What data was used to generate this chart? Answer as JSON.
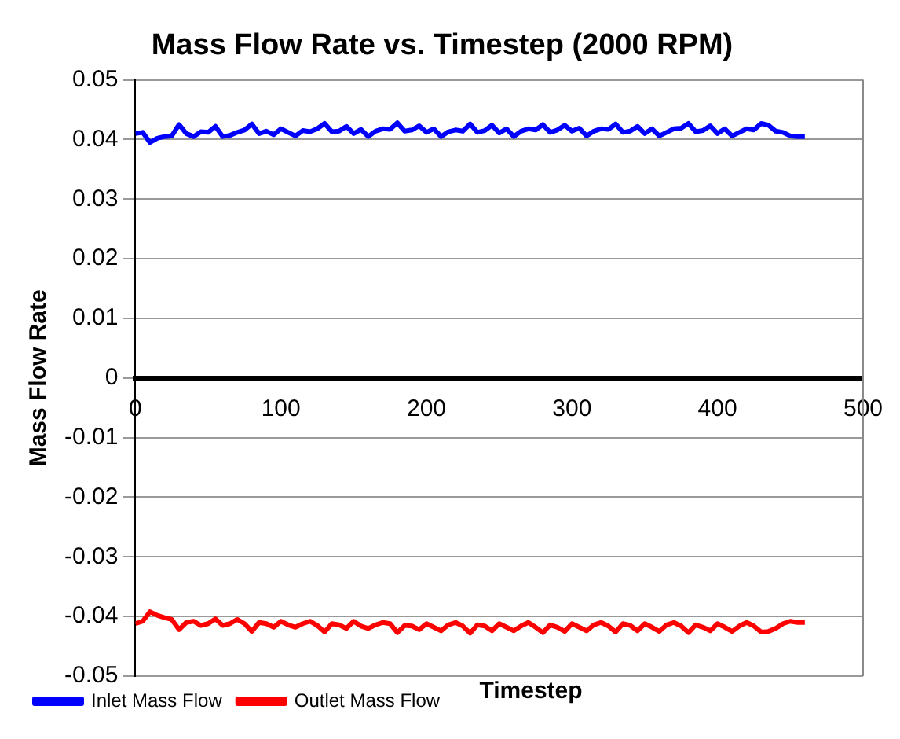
{
  "chart_data": {
    "type": "line",
    "title": "Mass Flow Rate vs. Timestep (2000 RPM)",
    "xlabel": "Timestep",
    "ylabel": "Mass Flow Rate",
    "x": [
      0,
      5,
      10,
      15,
      20,
      25,
      30,
      35,
      40,
      45,
      50,
      55,
      60,
      65,
      70,
      75,
      80,
      85,
      90,
      95,
      100,
      105,
      110,
      115,
      120,
      125,
      130,
      135,
      140,
      145,
      150,
      155,
      160,
      165,
      170,
      175,
      180,
      185,
      190,
      195,
      200,
      205,
      210,
      215,
      220,
      225,
      230,
      235,
      240,
      245,
      250,
      255,
      260,
      265,
      270,
      275,
      280,
      285,
      290,
      295,
      300,
      305,
      310,
      315,
      320,
      325,
      330,
      335,
      340,
      345,
      350,
      355,
      360,
      365,
      370,
      375,
      380,
      385,
      390,
      395,
      400,
      405,
      410,
      415,
      420,
      425,
      430,
      435,
      440,
      445,
      450,
      455,
      460
    ],
    "series": [
      {
        "name": "Inlet Mass Flow",
        "color": "#0000ff",
        "values": [
          0.041,
          0.0412,
          0.0395,
          0.0402,
          0.0405,
          0.0406,
          0.0425,
          0.041,
          0.0405,
          0.0413,
          0.0412,
          0.0422,
          0.0405,
          0.0407,
          0.0412,
          0.0416,
          0.0426,
          0.041,
          0.0414,
          0.0408,
          0.0418,
          0.0412,
          0.0406,
          0.0415,
          0.0413,
          0.0418,
          0.0427,
          0.0413,
          0.0414,
          0.0422,
          0.041,
          0.0417,
          0.0405,
          0.0414,
          0.0418,
          0.0417,
          0.0428,
          0.0414,
          0.0416,
          0.0423,
          0.0412,
          0.0418,
          0.0405,
          0.0413,
          0.0416,
          0.0414,
          0.0426,
          0.0412,
          0.0415,
          0.0424,
          0.0411,
          0.0418,
          0.0405,
          0.0414,
          0.0418,
          0.0416,
          0.0425,
          0.0412,
          0.0416,
          0.0424,
          0.0414,
          0.0419,
          0.0406,
          0.0414,
          0.0418,
          0.0417,
          0.0426,
          0.0412,
          0.0414,
          0.0422,
          0.041,
          0.0418,
          0.0406,
          0.0412,
          0.0418,
          0.0419,
          0.0427,
          0.0413,
          0.0415,
          0.0423,
          0.041,
          0.0418,
          0.0406,
          0.0412,
          0.0418,
          0.0416,
          0.0427,
          0.0424,
          0.0414,
          0.0412,
          0.0406,
          0.0405,
          0.0405
        ]
      },
      {
        "name": "Outlet Mass Flow",
        "color": "#ff0000",
        "values": [
          -0.0412,
          -0.0408,
          -0.0392,
          -0.0398,
          -0.0402,
          -0.0405,
          -0.0422,
          -0.041,
          -0.0408,
          -0.0415,
          -0.0412,
          -0.0404,
          -0.0415,
          -0.0412,
          -0.0405,
          -0.0412,
          -0.0425,
          -0.041,
          -0.0412,
          -0.0418,
          -0.0408,
          -0.0414,
          -0.0418,
          -0.0412,
          -0.0408,
          -0.0415,
          -0.0426,
          -0.0412,
          -0.0414,
          -0.042,
          -0.0408,
          -0.0416,
          -0.042,
          -0.0414,
          -0.041,
          -0.0412,
          -0.0427,
          -0.0415,
          -0.0416,
          -0.0422,
          -0.0412,
          -0.0418,
          -0.0424,
          -0.0414,
          -0.041,
          -0.0416,
          -0.0428,
          -0.0414,
          -0.0416,
          -0.0424,
          -0.0412,
          -0.0418,
          -0.0424,
          -0.0416,
          -0.041,
          -0.0418,
          -0.0427,
          -0.0414,
          -0.0418,
          -0.0425,
          -0.0412,
          -0.0418,
          -0.0424,
          -0.0414,
          -0.041,
          -0.0416,
          -0.0426,
          -0.0412,
          -0.0415,
          -0.0424,
          -0.0412,
          -0.0418,
          -0.0425,
          -0.0414,
          -0.041,
          -0.0416,
          -0.0427,
          -0.0414,
          -0.0418,
          -0.0424,
          -0.0412,
          -0.0418,
          -0.0425,
          -0.0416,
          -0.041,
          -0.0416,
          -0.0426,
          -0.0425,
          -0.042,
          -0.0412,
          -0.0408,
          -0.041,
          -0.041
        ]
      }
    ],
    "xlim": [
      0,
      500
    ],
    "xticks": [
      0,
      100,
      200,
      300,
      400,
      500
    ],
    "ylim": [
      -0.05,
      0.05
    ],
    "yticks": [
      -0.05,
      -0.04,
      -0.03,
      -0.02,
      -0.01,
      0,
      0.01,
      0.02,
      0.03,
      0.04,
      0.05
    ],
    "grid": "y",
    "legend": "bottom left",
    "marker": "none",
    "line_style": "solid"
  }
}
